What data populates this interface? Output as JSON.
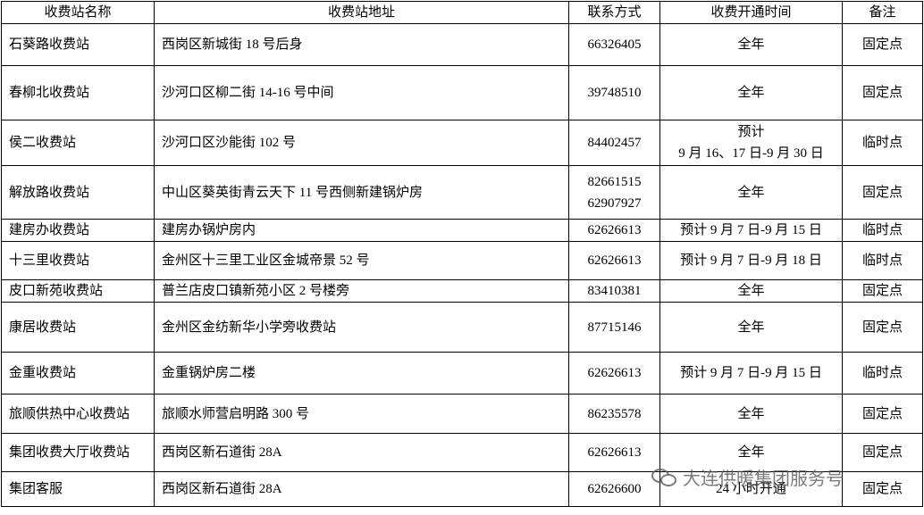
{
  "table": {
    "header": [
      "收费站名称",
      "收费站地址",
      "联系方式",
      "收费开通时间",
      "备注"
    ],
    "rows": [
      [
        "石葵路收费站",
        "西岗区新城街 18 号后身",
        "66326405",
        "全年",
        "固定点"
      ],
      [
        "春柳北收费站",
        "沙河口区柳二街 14-16 号中间",
        "39748510",
        "全年",
        "固定点"
      ],
      [
        "侯二收费站",
        "沙河口区沙能街 102 号",
        "84402457",
        [
          "预计",
          "9 月 16、17 日-9 月 30 日"
        ],
        "临时点"
      ],
      [
        "解放路收费站",
        "中山区葵英街青云天下 11 号西侧新建锅炉房",
        [
          "82661515",
          "62907927"
        ],
        "全年",
        "固定点"
      ],
      [
        "建房办收费站",
        "建房办锅炉房内",
        "62626613",
        "预计 9 月 7 日-9 月 15 日",
        "临时点"
      ],
      [
        "十三里收费站",
        "金州区十三里工业区金城帝景 52 号",
        "62626613",
        "预计 9 月 7 日-9 月 18 日",
        "临时点"
      ],
      [
        "皮口新苑收费站",
        "普兰店皮口镇新苑小区 2 号楼旁",
        "83410381",
        "全年",
        "固定点"
      ],
      [
        "康居收费站",
        "金州区金纺新华小学旁收费站",
        "87715146",
        "全年",
        "固定点"
      ],
      [
        "金重收费站",
        "金重锅炉房二楼",
        "62626613",
        "预计 9 月 7 日-9 月 15 日",
        "临时点"
      ],
      [
        "旅顺供热中心收费站",
        "旅顺水师营启明路 300 号",
        "86235578",
        "全年",
        "固定点"
      ],
      [
        "集团收费大厅收费站",
        "西岗区新石道街 28A",
        "62626613",
        "全年",
        "固定点"
      ],
      [
        "集团客服",
        "西岗区新石道街 28A",
        "62626600",
        "24 小时开通",
        "固定点"
      ]
    ]
  },
  "watermark": "大连供暖集团服务号"
}
